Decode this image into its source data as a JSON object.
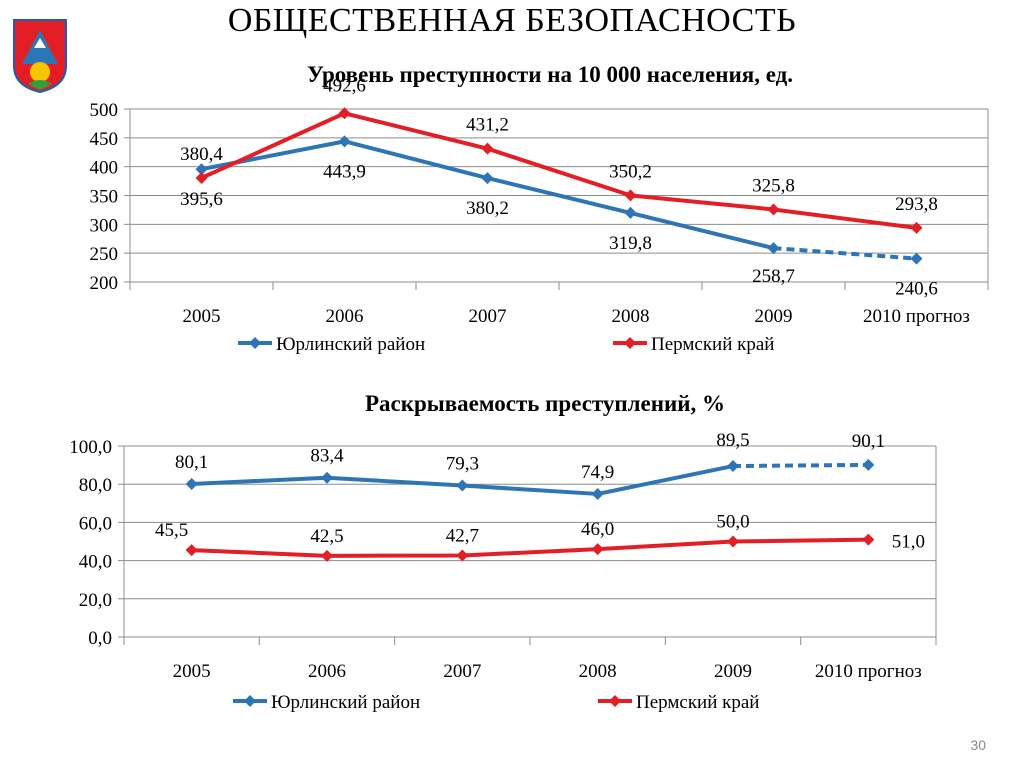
{
  "header": {
    "title": "ОБЩЕСТВЕННАЯ БЕЗОПАСНОСТЬ"
  },
  "page_number": "30",
  "colors": {
    "blue": "#2E75B6",
    "red": "#E31E24"
  },
  "chart_data": [
    {
      "type": "line",
      "title": "Уровень преступности на 10 000 населения, ед.",
      "categories": [
        "2005",
        "2006",
        "2007",
        "2008",
        "2009",
        "2010 прогноз"
      ],
      "ylim": [
        200,
        500
      ],
      "yticks": [
        "200",
        "250",
        "300",
        "350",
        "400",
        "450",
        "500"
      ],
      "grid": true,
      "legend_position": "bottom",
      "series": [
        {
          "name": "Юрлинский район",
          "color": "#2E75B6",
          "values": [
            395.6,
            443.9,
            380.2,
            319.8,
            258.7,
            240.6
          ],
          "labels": [
            "395,6",
            "443,9",
            "380,2",
            "319,8",
            "258,7",
            "240,6"
          ],
          "dashed_last_segment": true
        },
        {
          "name": "Пермский край",
          "color": "#E31E24",
          "values": [
            380.4,
            492.6,
            431.2,
            350.2,
            325.8,
            293.8
          ],
          "labels": [
            "380,4",
            "492,6",
            "431,2",
            "350,2",
            "325,8",
            "293,8"
          ],
          "dashed_last_segment": false
        }
      ]
    },
    {
      "type": "line",
      "title": "Раскрываемость преступлений, %",
      "categories": [
        "2005",
        "2006",
        "2007",
        "2008",
        "2009",
        "2010 прогноз"
      ],
      "ylim": [
        0,
        100
      ],
      "yticks": [
        "0,0",
        "20,0",
        "40,0",
        "60,0",
        "80,0",
        "100,0"
      ],
      "grid": true,
      "legend_position": "bottom",
      "series": [
        {
          "name": "Юрлинский район",
          "color": "#2E75B6",
          "values": [
            80.1,
            83.4,
            79.3,
            74.9,
            89.5,
            90.1
          ],
          "labels": [
            "80,1",
            "83,4",
            "79,3",
            "74,9",
            "89,5",
            "90,1"
          ],
          "dashed_last_segment": true
        },
        {
          "name": "Пермский край",
          "color": "#E31E24",
          "values": [
            45.5,
            42.5,
            42.7,
            46.0,
            50.0,
            51.0
          ],
          "labels": [
            "45,5",
            "42,5",
            "42,7",
            "46,0",
            "50,0",
            "51,0"
          ],
          "dashed_last_segment": false
        }
      ]
    }
  ]
}
